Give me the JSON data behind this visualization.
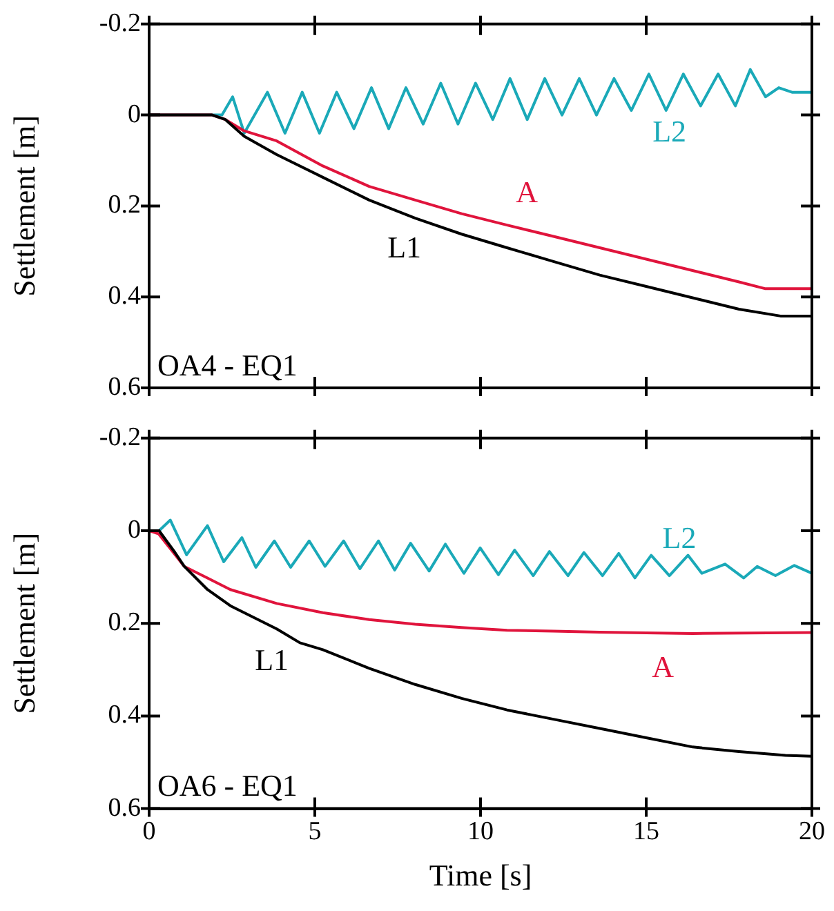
{
  "chart_data": [
    {
      "type": "line",
      "ylabel": "Settlement [m]",
      "xlim": [
        0,
        20
      ],
      "xticks": [
        0,
        5,
        10,
        15,
        20
      ],
      "ylim": [
        0.6,
        -0.2
      ],
      "yticks": [
        -0.2,
        0,
        0.2,
        0.4,
        0.6
      ],
      "tick_labels": "y",
      "grid": false,
      "legend": false,
      "marker": "none",
      "line_style": "solid",
      "annotations": [
        "OA4 - EQ1"
      ],
      "series": [
        {
          "name": "L1",
          "color": "#000000",
          "x": [
            0,
            1.9,
            2.3,
            2.87,
            3.85,
            5.24,
            6.64,
            8.03,
            9.43,
            10.8,
            12.2,
            13.6,
            15.0,
            16.4,
            17.8,
            19.05,
            20
          ],
          "values": [
            0,
            0,
            0.01,
            0.047,
            0.087,
            0.137,
            0.187,
            0.227,
            0.262,
            0.292,
            0.322,
            0.352,
            0.377,
            0.402,
            0.427,
            0.442,
            0.442
          ]
        },
        {
          "name": "A",
          "color": "#e0143c",
          "x": [
            0,
            1.9,
            2.3,
            2.87,
            3.85,
            5.24,
            6.64,
            8.03,
            9.43,
            10.8,
            12.2,
            13.6,
            15.0,
            16.4,
            17.8,
            18.6,
            20
          ],
          "values": [
            0,
            0,
            0.01,
            0.035,
            0.057,
            0.112,
            0.157,
            0.187,
            0.217,
            0.242,
            0.267,
            0.292,
            0.317,
            0.342,
            0.367,
            0.382,
            0.382
          ]
        },
        {
          "name": "L2",
          "color": "#1aa9b8",
          "x": [
            0,
            1.9,
            2.2,
            2.52,
            2.87,
            3.57,
            4.1,
            4.62,
            5.14,
            5.66,
            6.18,
            6.71,
            7.23,
            7.75,
            8.27,
            8.8,
            9.32,
            9.85,
            10.37,
            10.89,
            11.41,
            11.94,
            12.46,
            12.98,
            13.5,
            14.03,
            14.55,
            15.08,
            15.6,
            16.12,
            16.64,
            17.17,
            17.69,
            18.14,
            18.6,
            19.0,
            19.4,
            20
          ],
          "values": [
            0,
            0,
            0,
            -0.04,
            0.04,
            -0.05,
            0.04,
            -0.05,
            0.04,
            -0.05,
            0.03,
            -0.06,
            0.03,
            -0.06,
            0.02,
            -0.07,
            0.02,
            -0.07,
            0.01,
            -0.08,
            0.01,
            -0.08,
            0,
            -0.08,
            0,
            -0.08,
            -0.01,
            -0.09,
            -0.01,
            -0.09,
            -0.02,
            -0.09,
            -0.02,
            -0.1,
            -0.04,
            -0.06,
            -0.05,
            -0.05
          ]
        }
      ]
    },
    {
      "type": "line",
      "ylabel": "Settlement [m]",
      "xlabel": "Time [s]",
      "xlim": [
        0,
        20
      ],
      "xticks": [
        0,
        5,
        10,
        15,
        20
      ],
      "ylim": [
        0.6,
        -0.2
      ],
      "yticks": [
        -0.2,
        0,
        0.2,
        0.4,
        0.6
      ],
      "grid": false,
      "legend": false,
      "marker": "none",
      "line_style": "solid",
      "annotations": [
        "OA6 - EQ1"
      ],
      "series": [
        {
          "name": "L1",
          "color": "#000000",
          "x": [
            0,
            0.3,
            0.78,
            1.06,
            1.76,
            2.45,
            3.15,
            3.85,
            4.55,
            5.24,
            6.64,
            8.03,
            9.43,
            10.8,
            12.2,
            13.6,
            15.0,
            16.4,
            17.8,
            19.2,
            20
          ],
          "values": [
            0,
            0,
            0.047,
            0.077,
            0.127,
            0.162,
            0.187,
            0.212,
            0.242,
            0.257,
            0.297,
            0.332,
            0.362,
            0.387,
            0.407,
            0.427,
            0.447,
            0.467,
            0.477,
            0.485,
            0.487
          ]
        },
        {
          "name": "A",
          "color": "#e0143c",
          "x": [
            0,
            0.29,
            1.06,
            1.76,
            2.45,
            3.85,
            5.24,
            6.64,
            8.03,
            9.43,
            10.8,
            12.2,
            13.6,
            16.4,
            20
          ],
          "values": [
            0,
            0.007,
            0.077,
            0.102,
            0.127,
            0.157,
            0.177,
            0.192,
            0.202,
            0.209,
            0.215,
            0.217,
            0.219,
            0.222,
            0.22
          ]
        },
        {
          "name": "L2",
          "color": "#1aa9b8",
          "x": [
            0,
            0.3,
            0.64,
            1.13,
            1.76,
            2.25,
            2.8,
            3.22,
            3.78,
            4.27,
            4.83,
            5.31,
            5.87,
            6.36,
            6.92,
            7.41,
            7.89,
            8.45,
            8.94,
            9.5,
            9.99,
            10.54,
            11.03,
            11.59,
            12.08,
            12.64,
            13.12,
            13.68,
            14.17,
            14.66,
            15.15,
            15.7,
            16.26,
            16.68,
            17.38,
            17.94,
            18.35,
            18.9,
            19.47,
            20
          ],
          "values": [
            0,
            0,
            -0.023,
            0.052,
            -0.011,
            0.067,
            0.015,
            0.079,
            0.022,
            0.079,
            0.022,
            0.077,
            0.022,
            0.082,
            0.022,
            0.085,
            0.027,
            0.087,
            0.029,
            0.092,
            0.037,
            0.095,
            0.042,
            0.097,
            0.045,
            0.097,
            0.047,
            0.097,
            0.049,
            0.102,
            0.053,
            0.097,
            0.053,
            0.092,
            0.072,
            0.102,
            0.077,
            0.097,
            0.075,
            0.092
          ]
        }
      ]
    }
  ]
}
